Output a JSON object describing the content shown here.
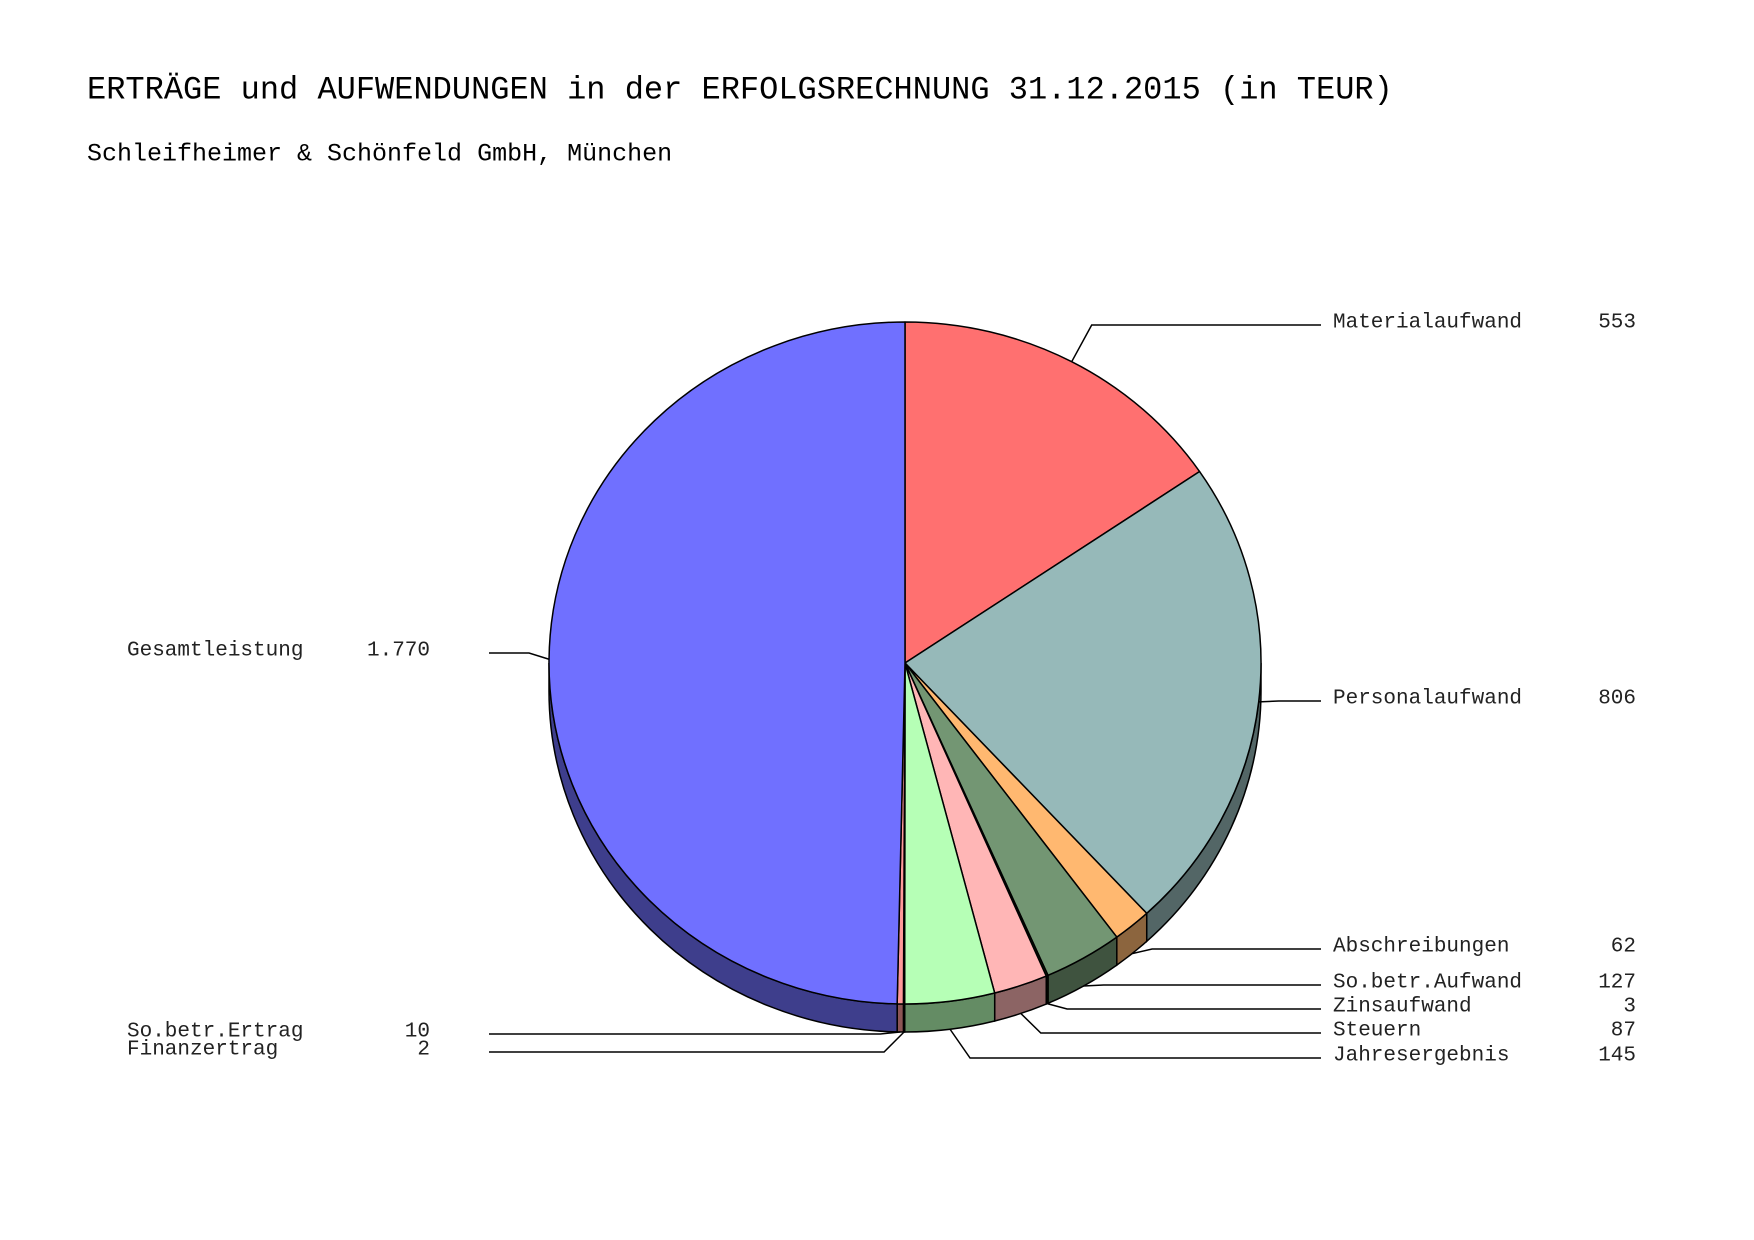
{
  "chart_data": {
    "type": "pie",
    "title": "ERTRÄGE und AUFWENDUNGEN in der ERFOLGSRECHNUNG 31.12.2015 (in TEUR)",
    "subtitle": "Schleifheimer & Schönfeld GmbH, München",
    "categories": [
      "Materialaufwand",
      "Personalaufwand",
      "Abschreibungen",
      "So.betr.Aufwand",
      "Zinsaufwand",
      "Steuern",
      "Jahresergebnis",
      "Finanzertrag",
      "So.betr.Ertrag",
      "Gesamtleistung"
    ],
    "values": [
      553,
      806,
      62,
      127,
      3,
      87,
      145,
      2,
      10,
      1770
    ],
    "value_labels": [
      "553",
      "806",
      "62",
      "127",
      "3",
      "87",
      "145",
      "2",
      "10",
      "1.770"
    ],
    "colors": [
      "#ff7070",
      "#96b9b9",
      "#ffb870",
      "#739673",
      "#0a3a0a",
      "#ffb6b6",
      "#b6ffb6",
      "#ffd0d0",
      "#ff9a9a",
      "#7070ff"
    ]
  }
}
